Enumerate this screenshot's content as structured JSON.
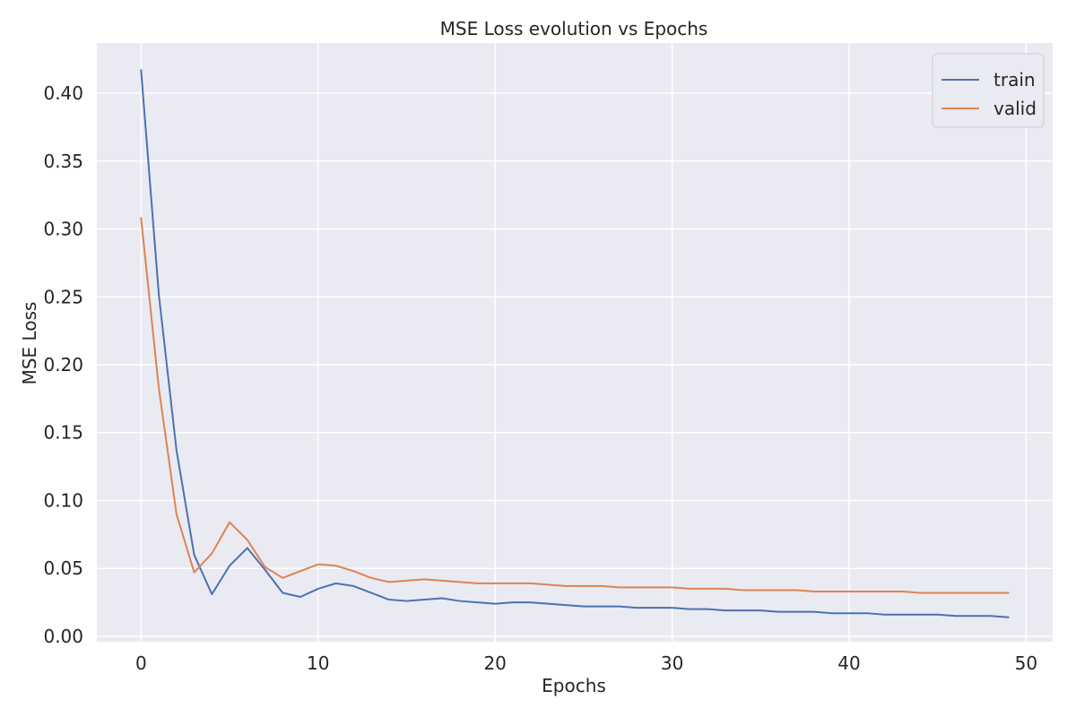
{
  "chart_data": {
    "type": "line",
    "title": "MSE Loss evolution vs Epochs",
    "xlabel": "Epochs",
    "ylabel": "MSE Loss",
    "xlim": [
      -2.5,
      51.5
    ],
    "ylim": [
      -0.004,
      0.437
    ],
    "x_ticks": [
      0,
      10,
      20,
      30,
      40,
      50
    ],
    "y_ticks": [
      0.0,
      0.05,
      0.1,
      0.15,
      0.2,
      0.25,
      0.3,
      0.35,
      0.4
    ],
    "y_tick_labels": [
      "0.00",
      "0.05",
      "0.10",
      "0.15",
      "0.20",
      "0.25",
      "0.30",
      "0.35",
      "0.40"
    ],
    "x_tick_labels": [
      "0",
      "10",
      "20",
      "30",
      "40",
      "50"
    ],
    "grid": true,
    "legend_position": "top-right",
    "background_color": "#eaeaf2",
    "grid_color": "#ffffff",
    "x": [
      0,
      1,
      2,
      3,
      4,
      5,
      6,
      7,
      8,
      9,
      10,
      11,
      12,
      13,
      14,
      15,
      16,
      17,
      18,
      19,
      20,
      21,
      22,
      23,
      24,
      25,
      26,
      27,
      28,
      29,
      30,
      31,
      32,
      33,
      34,
      35,
      36,
      37,
      38,
      39,
      40,
      41,
      42,
      43,
      44,
      45,
      46,
      47,
      48,
      49
    ],
    "series": [
      {
        "name": "train",
        "color": "#4c72b0",
        "values": [
          0.417,
          0.252,
          0.137,
          0.06,
          0.031,
          0.052,
          0.065,
          0.049,
          0.032,
          0.029,
          0.035,
          0.039,
          0.037,
          0.032,
          0.027,
          0.026,
          0.027,
          0.028,
          0.026,
          0.025,
          0.024,
          0.025,
          0.025,
          0.024,
          0.023,
          0.022,
          0.022,
          0.022,
          0.021,
          0.021,
          0.021,
          0.02,
          0.02,
          0.019,
          0.019,
          0.019,
          0.018,
          0.018,
          0.018,
          0.017,
          0.017,
          0.017,
          0.016,
          0.016,
          0.016,
          0.016,
          0.015,
          0.015,
          0.015,
          0.014
        ]
      },
      {
        "name": "valid",
        "color": "#dd8452",
        "values": [
          0.308,
          0.183,
          0.09,
          0.047,
          0.061,
          0.084,
          0.071,
          0.051,
          0.043,
          0.048,
          0.053,
          0.052,
          0.048,
          0.043,
          0.04,
          0.041,
          0.042,
          0.041,
          0.04,
          0.039,
          0.039,
          0.039,
          0.039,
          0.038,
          0.037,
          0.037,
          0.037,
          0.036,
          0.036,
          0.036,
          0.036,
          0.035,
          0.035,
          0.035,
          0.034,
          0.034,
          0.034,
          0.034,
          0.033,
          0.033,
          0.033,
          0.033,
          0.033,
          0.033,
          0.032,
          0.032,
          0.032,
          0.032,
          0.032,
          0.032
        ]
      }
    ]
  }
}
